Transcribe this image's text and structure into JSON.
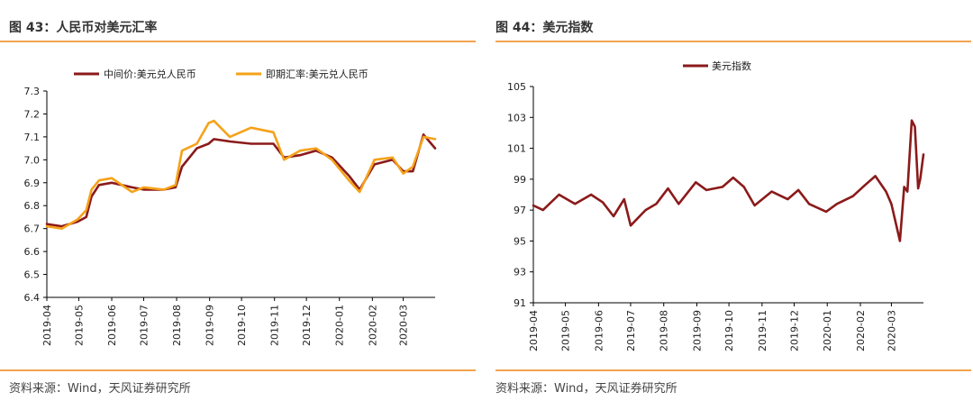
{
  "figures": [
    {
      "title": "图 43：人民币对美元汇率",
      "source": "资料来源：Wind，天风证券研究所",
      "chart_data": {
        "type": "line",
        "ylim": [
          6.4,
          7.3
        ],
        "yticks": [
          "6.4",
          "6.5",
          "6.6",
          "6.7",
          "6.8",
          "6.9",
          "7.0",
          "7.1",
          "7.2",
          "7.3"
        ],
        "xlim": [
          "2019-04",
          "2020-03-31"
        ],
        "xticks": [
          "2019-04",
          "2019-05",
          "2019-06",
          "2019-07",
          "2019-08",
          "2019-09",
          "2019-10",
          "2019-11",
          "2019-12",
          "2020-01",
          "2020-02",
          "2020-03"
        ],
        "legend_position": "top",
        "grid": false,
        "series": [
          {
            "name": "中间价:美元兑人民币",
            "color": "#8b1a1a",
            "points": [
              [
                "2019-04-01",
                6.72
              ],
              [
                "2019-04-15",
                6.71
              ],
              [
                "2019-04-30",
                6.73
              ],
              [
                "2019-05-08",
                6.75
              ],
              [
                "2019-05-13",
                6.84
              ],
              [
                "2019-05-20",
                6.89
              ],
              [
                "2019-06-01",
                6.9
              ],
              [
                "2019-06-20",
                6.88
              ],
              [
                "2019-07-01",
                6.87
              ],
              [
                "2019-07-20",
                6.87
              ],
              [
                "2019-07-31",
                6.88
              ],
              [
                "2019-08-06",
                6.97
              ],
              [
                "2019-08-20",
                7.05
              ],
              [
                "2019-08-31",
                7.07
              ],
              [
                "2019-09-05",
                7.09
              ],
              [
                "2019-09-20",
                7.08
              ],
              [
                "2019-10-10",
                7.07
              ],
              [
                "2019-10-31",
                7.07
              ],
              [
                "2019-11-10",
                7.01
              ],
              [
                "2019-11-25",
                7.02
              ],
              [
                "2019-12-10",
                7.04
              ],
              [
                "2019-12-25",
                7.01
              ],
              [
                "2020-01-10",
                6.93
              ],
              [
                "2020-01-20",
                6.87
              ],
              [
                "2020-02-03",
                6.98
              ],
              [
                "2020-02-20",
                7.0
              ],
              [
                "2020-03-01",
                6.95
              ],
              [
                "2020-03-10",
                6.95
              ],
              [
                "2020-03-20",
                7.11
              ],
              [
                "2020-03-31",
                7.05
              ]
            ]
          },
          {
            "name": "即期汇率:美元兑人民币",
            "color": "#f5a219",
            "points": [
              [
                "2019-04-01",
                6.71
              ],
              [
                "2019-04-15",
                6.7
              ],
              [
                "2019-04-30",
                6.74
              ],
              [
                "2019-05-08",
                6.78
              ],
              [
                "2019-05-13",
                6.87
              ],
              [
                "2019-05-20",
                6.91
              ],
              [
                "2019-06-01",
                6.92
              ],
              [
                "2019-06-20",
                6.86
              ],
              [
                "2019-07-01",
                6.88
              ],
              [
                "2019-07-20",
                6.87
              ],
              [
                "2019-07-31",
                6.89
              ],
              [
                "2019-08-06",
                7.04
              ],
              [
                "2019-08-20",
                7.07
              ],
              [
                "2019-08-31",
                7.16
              ],
              [
                "2019-09-05",
                7.17
              ],
              [
                "2019-09-20",
                7.1
              ],
              [
                "2019-10-10",
                7.14
              ],
              [
                "2019-10-31",
                7.12
              ],
              [
                "2019-11-10",
                7.0
              ],
              [
                "2019-11-25",
                7.04
              ],
              [
                "2019-12-10",
                7.05
              ],
              [
                "2019-12-25",
                7.0
              ],
              [
                "2020-01-10",
                6.91
              ],
              [
                "2020-01-20",
                6.86
              ],
              [
                "2020-02-03",
                7.0
              ],
              [
                "2020-02-20",
                7.01
              ],
              [
                "2020-03-01",
                6.94
              ],
              [
                "2020-03-10",
                6.97
              ],
              [
                "2020-03-20",
                7.1
              ],
              [
                "2020-03-31",
                7.09
              ]
            ]
          }
        ]
      }
    },
    {
      "title": "图 44：美元指数",
      "source": "资料来源：Wind，天风证券研究所",
      "chart_data": {
        "type": "line",
        "ylim": [
          91,
          105
        ],
        "yticks": [
          "91",
          "93",
          "95",
          "97",
          "99",
          "101",
          "103",
          "105"
        ],
        "xlim": [
          "2019-04",
          "2020-03-31"
        ],
        "xticks": [
          "2019-04",
          "2019-05",
          "2019-06",
          "2019-07",
          "2019-08",
          "2019-09",
          "2019-10",
          "2019-11",
          "2019-12",
          "2020-01",
          "2020-02",
          "2020-03"
        ],
        "legend_position": "top",
        "grid": false,
        "series": [
          {
            "name": "美元指数",
            "color": "#8b1a1a",
            "points": [
              [
                "2019-04-01",
                97.3
              ],
              [
                "2019-04-10",
                97.0
              ],
              [
                "2019-04-25",
                98.0
              ],
              [
                "2019-05-10",
                97.4
              ],
              [
                "2019-05-25",
                98.0
              ],
              [
                "2019-06-05",
                97.5
              ],
              [
                "2019-06-15",
                96.6
              ],
              [
                "2019-06-25",
                97.7
              ],
              [
                "2019-07-01",
                96.0
              ],
              [
                "2019-07-15",
                97.0
              ],
              [
                "2019-07-25",
                97.4
              ],
              [
                "2019-08-05",
                98.4
              ],
              [
                "2019-08-15",
                97.4
              ],
              [
                "2019-08-31",
                98.8
              ],
              [
                "2019-09-10",
                98.3
              ],
              [
                "2019-09-25",
                98.5
              ],
              [
                "2019-10-05",
                99.1
              ],
              [
                "2019-10-15",
                98.5
              ],
              [
                "2019-10-25",
                97.3
              ],
              [
                "2019-11-10",
                98.2
              ],
              [
                "2019-11-25",
                97.7
              ],
              [
                "2019-12-05",
                98.3
              ],
              [
                "2019-12-15",
                97.4
              ],
              [
                "2019-12-31",
                96.9
              ],
              [
                "2020-01-10",
                97.4
              ],
              [
                "2020-01-25",
                97.9
              ],
              [
                "2020-02-05",
                98.6
              ],
              [
                "2020-02-15",
                99.2
              ],
              [
                "2020-02-25",
                98.2
              ],
              [
                "2020-03-01",
                97.4
              ],
              [
                "2020-03-09",
                95.0
              ],
              [
                "2020-03-13",
                98.5
              ],
              [
                "2020-03-16",
                98.2
              ],
              [
                "2020-03-20",
                102.8
              ],
              [
                "2020-03-23",
                102.4
              ],
              [
                "2020-03-26",
                98.4
              ],
              [
                "2020-03-28",
                99.0
              ],
              [
                "2020-03-31",
                100.6
              ]
            ]
          }
        ]
      }
    }
  ]
}
